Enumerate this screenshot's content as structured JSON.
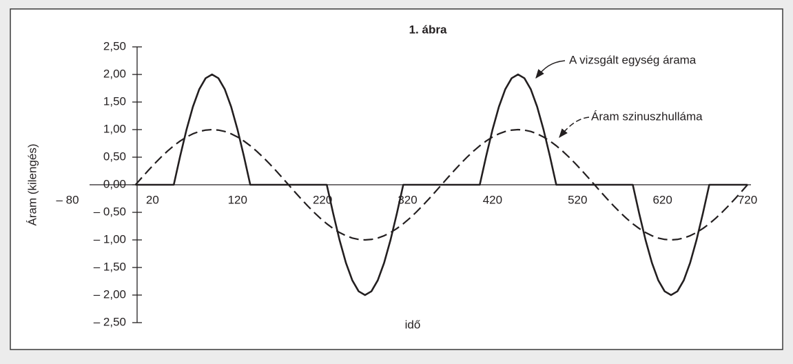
{
  "chart_data": {
    "type": "line",
    "title": "1. ábra",
    "xlabel": "idő",
    "ylabel": "Áram (kilengés)",
    "xlim": [
      -80,
      720
    ],
    "ylim": [
      -2.5,
      2.5
    ],
    "xticks": [
      {
        "value": -80,
        "label": "– 80"
      },
      20,
      120,
      220,
      320,
      420,
      520,
      620,
      720
    ],
    "yticks": [
      {
        "value": 2.5,
        "label": "2,50"
      },
      {
        "value": 2,
        "label": "2,00"
      },
      {
        "value": 1.5,
        "label": "1,50"
      },
      {
        "value": 1,
        "label": "1,00"
      },
      {
        "value": 0.5,
        "label": "0,50"
      },
      {
        "value": 0,
        "label": "0,00"
      },
      {
        "value": -0.5,
        "label": "– 0,50"
      },
      {
        "value": -1,
        "label": "– 1,00"
      },
      {
        "value": -1.5,
        "label": "– 1,50"
      },
      {
        "value": -2,
        "label": "– 2,00"
      },
      {
        "value": -2.5,
        "label": "– 2,50"
      }
    ],
    "x": [
      0,
      7.5,
      15,
      22.5,
      30,
      37.5,
      45,
      52.5,
      60,
      67.5,
      75,
      82.5,
      90,
      97.5,
      105,
      112.5,
      120,
      127.5,
      135,
      142.5,
      150,
      157.5,
      165,
      172.5,
      180,
      187.5,
      195,
      202.5,
      210,
      217.5,
      225,
      232.5,
      240,
      247.5,
      255,
      262.5,
      270,
      277.5,
      285,
      292.5,
      300,
      307.5,
      315,
      322.5,
      330,
      337.5,
      345,
      352.5,
      360,
      367.5,
      375,
      382.5,
      390,
      397.5,
      405,
      412.5,
      420,
      427.5,
      435,
      442.5,
      450,
      457.5,
      465,
      472.5,
      480,
      487.5,
      495,
      502.5,
      510,
      517.5,
      525,
      532.5,
      540,
      547.5,
      555,
      562.5,
      570,
      577.5,
      585,
      592.5,
      600,
      607.5,
      615,
      622.5,
      630,
      637.5,
      645,
      652.5,
      660,
      667.5,
      675,
      682.5,
      690,
      697.5,
      705,
      712.5,
      720
    ],
    "series": [
      {
        "name": "A vizsgált egység árama",
        "color": "#231f20",
        "style": "solid",
        "values": [
          0,
          0,
          0,
          0,
          0,
          0,
          0,
          0.518,
          1,
          1.414,
          1.732,
          1.932,
          2,
          1.932,
          1.732,
          1.414,
          1,
          0.518,
          0,
          0,
          0,
          0,
          0,
          0,
          0,
          0,
          0,
          0,
          0,
          0,
          0,
          -0.518,
          -1,
          -1.414,
          -1.732,
          -1.932,
          -2,
          -1.932,
          -1.732,
          -1.414,
          -1,
          -0.518,
          0,
          0,
          0,
          0,
          0,
          0,
          0,
          0,
          0,
          0,
          0,
          0,
          0,
          0.518,
          1,
          1.414,
          1.732,
          1.932,
          2,
          1.932,
          1.732,
          1.414,
          1,
          0.518,
          0,
          0,
          0,
          0,
          0,
          0,
          0,
          0,
          0,
          0,
          0,
          0,
          0,
          -0.518,
          -1,
          -1.414,
          -1.732,
          -1.932,
          -2,
          -1.932,
          -1.732,
          -1.414,
          -1,
          -0.518,
          0,
          0,
          0,
          0,
          0,
          0,
          0
        ]
      },
      {
        "name": "Áram szinuszhulláma",
        "color": "#231f20",
        "style": "dashed",
        "values": [
          0,
          0.131,
          0.259,
          0.383,
          0.5,
          0.609,
          0.707,
          0.793,
          0.866,
          0.924,
          0.966,
          0.991,
          1,
          0.991,
          0.966,
          0.924,
          0.866,
          0.793,
          0.707,
          0.609,
          0.5,
          0.383,
          0.259,
          0.131,
          0,
          -0.131,
          -0.259,
          -0.383,
          -0.5,
          -0.609,
          -0.707,
          -0.793,
          -0.866,
          -0.924,
          -0.966,
          -0.991,
          -1,
          -0.991,
          -0.966,
          -0.924,
          -0.866,
          -0.793,
          -0.707,
          -0.609,
          -0.5,
          -0.383,
          -0.259,
          -0.131,
          0,
          0.131,
          0.259,
          0.383,
          0.5,
          0.609,
          0.707,
          0.793,
          0.866,
          0.924,
          0.966,
          0.991,
          1,
          0.991,
          0.966,
          0.924,
          0.866,
          0.793,
          0.707,
          0.609,
          0.5,
          0.383,
          0.259,
          0.131,
          0,
          -0.131,
          -0.259,
          -0.383,
          -0.5,
          -0.609,
          -0.707,
          -0.793,
          -0.866,
          -0.924,
          -0.966,
          -0.991,
          -1,
          -0.991,
          -0.966,
          -0.924,
          -0.866,
          -0.793,
          -0.707,
          -0.609,
          -0.5,
          -0.383,
          -0.259,
          -0.131,
          0
        ]
      }
    ]
  }
}
